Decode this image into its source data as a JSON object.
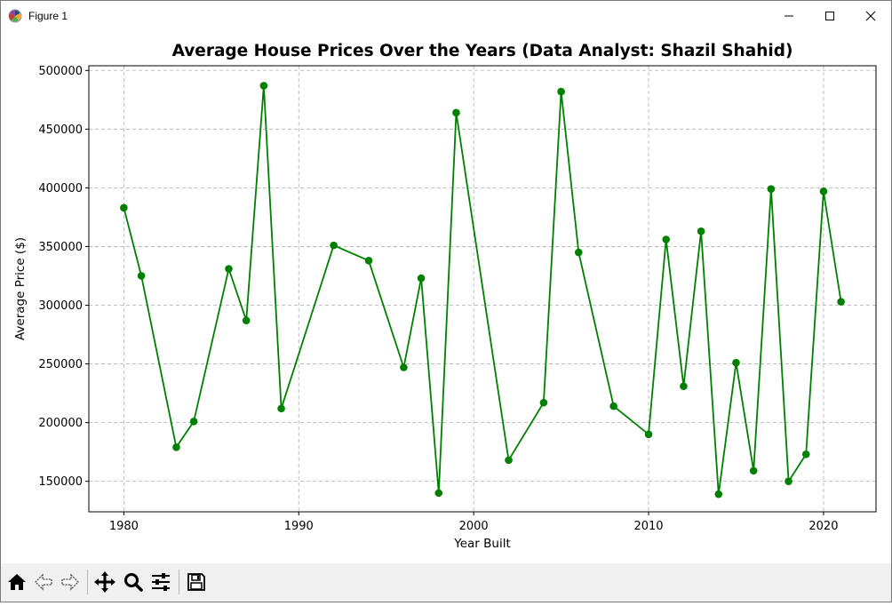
{
  "window": {
    "title": "Figure 1",
    "controls": {
      "minimize": "minimize",
      "maximize": "maximize",
      "close": "close"
    }
  },
  "toolbar": {
    "buttons": [
      {
        "name": "home-button",
        "icon": "home-icon"
      },
      {
        "name": "back-button",
        "icon": "back-arrow-icon"
      },
      {
        "name": "forward-button",
        "icon": "forward-arrow-icon"
      },
      {
        "name": "pan-button",
        "icon": "pan-move-icon"
      },
      {
        "name": "zoom-button",
        "icon": "zoom-magnifier-icon"
      },
      {
        "name": "configure-subplots-button",
        "icon": "sliders-icon"
      },
      {
        "name": "save-button",
        "icon": "save-disk-icon"
      }
    ]
  },
  "chart_data": {
    "type": "line",
    "title": "Average House Prices Over the Years (Data Analyst: Shazil Shahid)",
    "xlabel": "Year Built",
    "ylabel": "Average Price ($)",
    "xlim": [
      1978,
      2023
    ],
    "ylim": [
      124000,
      504000
    ],
    "xticks": [
      1980,
      1990,
      2000,
      2010,
      2020
    ],
    "yticks": [
      150000,
      200000,
      250000,
      300000,
      350000,
      400000,
      450000,
      500000
    ],
    "grid": true,
    "line_color": "#008000",
    "marker": "circle",
    "x": [
      1980,
      1981,
      1983,
      1984,
      1986,
      1987,
      1988,
      1989,
      1992,
      1994,
      1996,
      1997,
      1998,
      1999,
      2002,
      2004,
      2005,
      2006,
      2008,
      2010,
      2011,
      2012,
      2013,
      2014,
      2015,
      2016,
      2017,
      2018,
      2019,
      2020,
      2021
    ],
    "y": [
      383000,
      325000,
      179000,
      201000,
      331000,
      287000,
      487000,
      212000,
      351000,
      338000,
      247000,
      323000,
      140000,
      464000,
      168000,
      217000,
      482000,
      345000,
      214000,
      190000,
      356000,
      231000,
      363000,
      139000,
      251000,
      159000,
      399000,
      150000,
      173000,
      397000,
      303000
    ]
  }
}
